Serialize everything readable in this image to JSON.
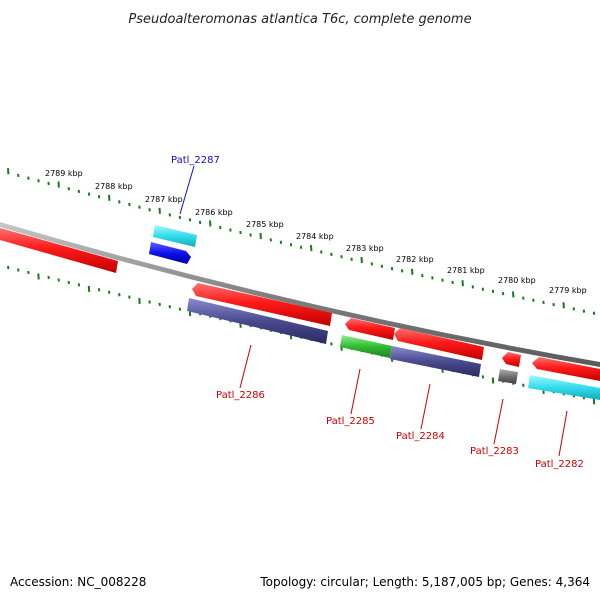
{
  "title": "Pseudoalteromonas atlantica T6c, complete genome",
  "footer": {
    "accession": "Accession: NC_008228",
    "summary": "Topology: circular; Length: 5,187,005 bp; Genes: 4,364"
  },
  "colors": {
    "backbone": "#808080",
    "ticks": "#1a7a1a",
    "forward_gene": "#ff1a1a",
    "reverse_gene": "#ff1a1a",
    "cds_forward": "#33ddee",
    "cds_reverse": "#4a4a8e",
    "blue_gene": "#1010ee",
    "green_gene": "#33bb33",
    "gray_gene": "#707070",
    "label_blue": "#1010cc",
    "label_red": "#cc0000"
  },
  "scale": {
    "tick_labels": [
      "2789 kbp",
      "2788 kbp",
      "2787 kbp",
      "2786 kbp",
      "2785 kbp",
      "2784 kbp",
      "2783 kbp",
      "2782 kbp",
      "2781 kbp",
      "2780 kbp",
      "2779 kbp"
    ]
  },
  "genes": [
    {
      "label": "Patl_2287",
      "color": "blue"
    },
    {
      "label": "Patl_2286",
      "color": "red"
    },
    {
      "label": "Patl_2285",
      "color": "red"
    },
    {
      "label": "Patl_2284",
      "color": "red"
    },
    {
      "label": "Patl_2283",
      "color": "red"
    },
    {
      "label": "Patl_2282",
      "color": "red"
    }
  ]
}
